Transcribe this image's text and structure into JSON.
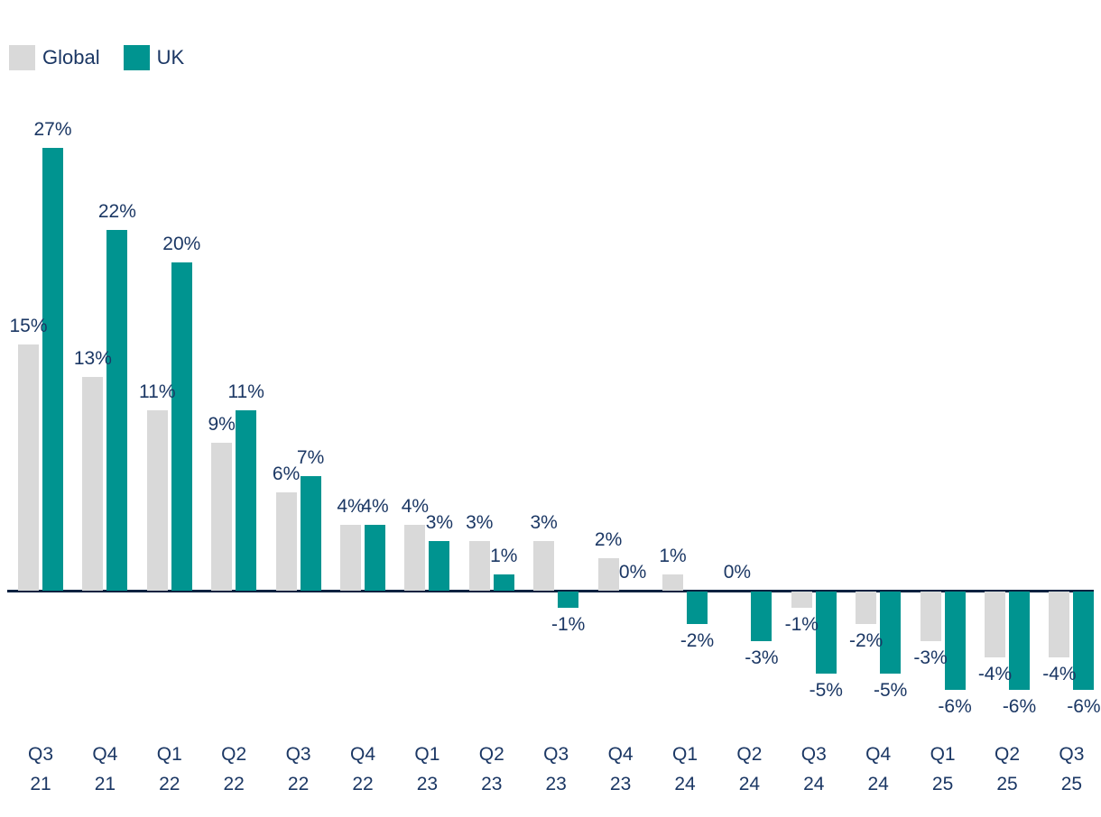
{
  "legend": {
    "items": [
      {
        "label": "Global",
        "color": "#d9d9d9"
      },
      {
        "label": "UK",
        "color": "#009490"
      }
    ]
  },
  "colors": {
    "label_text": "#1b3764",
    "axis_line": "#0a2240",
    "background": "#ffffff"
  },
  "chart_data": {
    "type": "bar",
    "categories": [
      "Q3 21",
      "Q4 21",
      "Q1 22",
      "Q2 22",
      "Q3 22",
      "Q4 22",
      "Q1 23",
      "Q2 23",
      "Q3 23",
      "Q4 23",
      "Q1 24",
      "Q2 24",
      "Q3 24",
      "Q4 24",
      "Q1 25",
      "Q2 25",
      "Q3 25"
    ],
    "series": [
      {
        "name": "Global",
        "color": "#d9d9d9",
        "values": [
          15,
          13,
          11,
          9,
          6,
          4,
          4,
          3,
          3,
          2,
          1,
          0,
          -1,
          -2,
          -3,
          -4,
          -4
        ]
      },
      {
        "name": "UK",
        "color": "#009490",
        "values": [
          27,
          22,
          20,
          11,
          7,
          4,
          3,
          1,
          -1,
          0,
          -2,
          -3,
          -5,
          -5,
          -6,
          -6,
          -6
        ]
      }
    ],
    "value_suffix": "%",
    "data_labels": true,
    "ylim": [
      -6,
      27
    ],
    "grid": false,
    "legend_position": "top-left",
    "title": "",
    "xlabel": "",
    "ylabel": ""
  }
}
